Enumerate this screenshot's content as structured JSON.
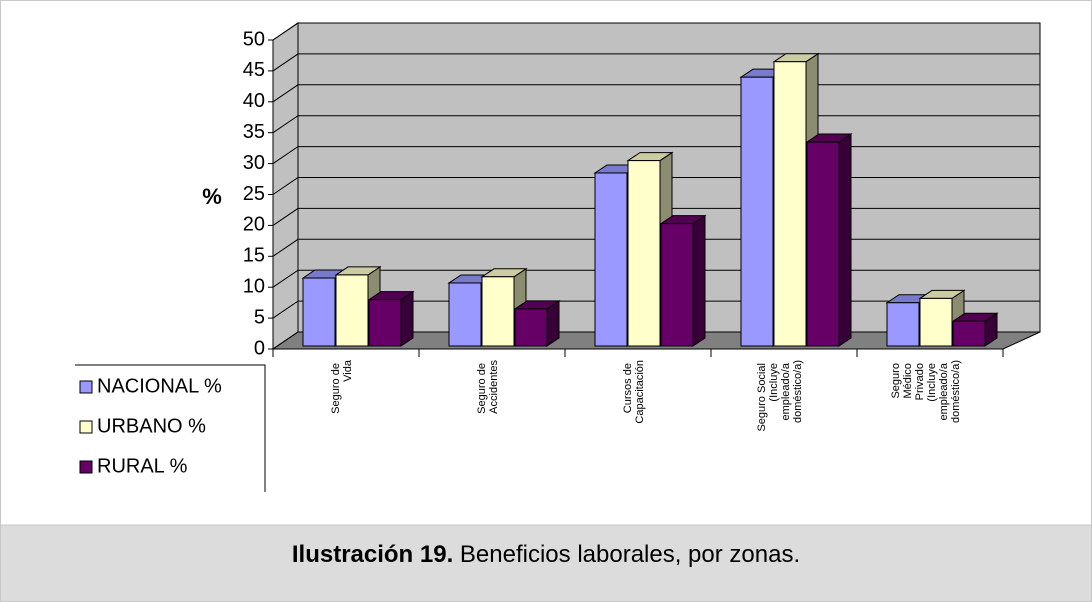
{
  "chart_data": {
    "type": "bar3d",
    "y_label": "%",
    "categories": [
      "Seguro de\nVida",
      "Seguro de\nAccidentes",
      "Cursos de\nCapacitación",
      "Seguro Social\n(Incluye\nempleado/a\ndoméstico/a)",
      "Seguro\nMédico\nPrivado\n(Incluye\nempleado/a\ndoméstico/a)"
    ],
    "series": [
      {
        "name": "NACIONAL %",
        "color": "#9999ff",
        "values": [
          11,
          10.2,
          28,
          43.5,
          7
        ]
      },
      {
        "name": "URBANO %",
        "color": "#ffffcc",
        "values": [
          11.5,
          11.2,
          30,
          46,
          7.7
        ]
      },
      {
        "name": "RURAL %",
        "color": "#660066",
        "values": [
          7.5,
          6,
          19.8,
          33,
          4
        ]
      }
    ],
    "ylim": [
      0,
      50
    ],
    "yticks": [
      0,
      5,
      10,
      15,
      20,
      25,
      30,
      35,
      40,
      45,
      50
    ],
    "grid": true
  },
  "caption": {
    "label": "Ilustración 19.",
    "text": "Beneficios laborales, por zonas."
  }
}
